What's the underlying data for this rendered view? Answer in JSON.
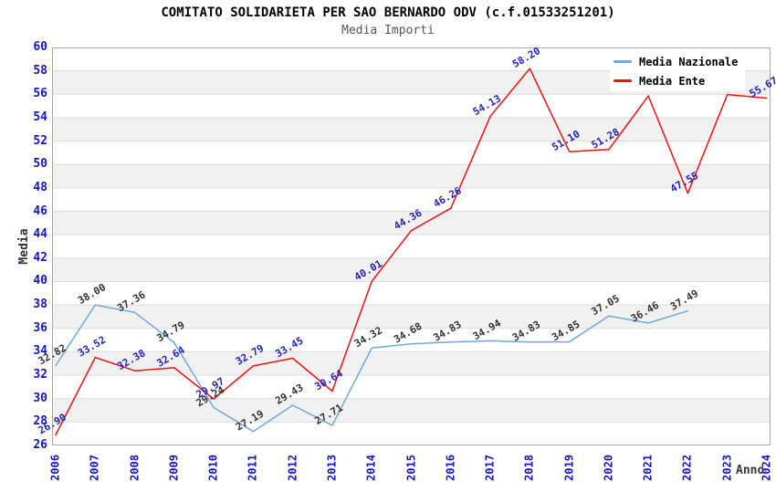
{
  "header": {
    "title": "COMITATO SOLIDARIETA PER SAO BERNARDO ODV (c.f.01533251201)",
    "subtitle": "Media Importi"
  },
  "colors": {
    "nazionale_line": "#6fa8dc",
    "ente_line": "#ee1111",
    "nazionale_label": "#333333",
    "ente_label": "#2222bb",
    "axis_tick_text": "#1414cc",
    "band_fill": "#f1f1f1",
    "gridline": "#dcdcdc",
    "plot_border": "#a8a8a8"
  },
  "chart_data": {
    "type": "line",
    "title": "COMITATO SOLIDARIETA PER SAO BERNARDO ODV (c.f.01533251201)",
    "subtitle": "Media Importi",
    "xlabel": "Anno",
    "ylabel": "Media",
    "ylim": [
      26,
      60
    ],
    "ytick_step": 2,
    "grid": true,
    "legend_position": "top-right",
    "x": [
      2006,
      2007,
      2008,
      2009,
      2010,
      2011,
      2012,
      2013,
      2014,
      2015,
      2016,
      2017,
      2018,
      2019,
      2020,
      2021,
      2022,
      2023,
      2024
    ],
    "series": [
      {
        "name": "Media Nazionale",
        "color": "#6fa8dc",
        "label_color": "#333333",
        "values": [
          32.82,
          38.0,
          37.36,
          34.79,
          29.24,
          27.19,
          29.43,
          27.71,
          34.32,
          34.68,
          34.83,
          34.94,
          34.83,
          34.85,
          37.05,
          36.46,
          37.49,
          null,
          null
        ],
        "labels": [
          "32.82",
          "38.00",
          "37.36",
          "34.79",
          "29.24",
          "27.19",
          "29.43",
          "27.71",
          "34.32",
          "34.68",
          "34.83",
          "34.94",
          "34.83",
          "34.85",
          "37.05",
          "36.46",
          "37.49",
          "",
          ""
        ]
      },
      {
        "name": "Media Ente",
        "color": "#ee1111",
        "label_color": "#2222bb",
        "values": [
          26.9,
          33.52,
          32.38,
          32.64,
          29.97,
          32.79,
          33.45,
          30.64,
          40.01,
          44.36,
          46.26,
          54.13,
          58.2,
          51.1,
          51.28,
          55.86,
          47.55,
          55.98,
          55.67
        ],
        "labels": [
          "26.90",
          "33.52",
          "32.38",
          "32.64",
          "29.97",
          "32.79",
          "33.45",
          "30.64",
          "40.01",
          "44.36",
          "46.26",
          "54.13",
          "58.20",
          "51.10",
          "51.28",
          "",
          "47.55",
          "",
          "55.67"
        ]
      }
    ]
  }
}
